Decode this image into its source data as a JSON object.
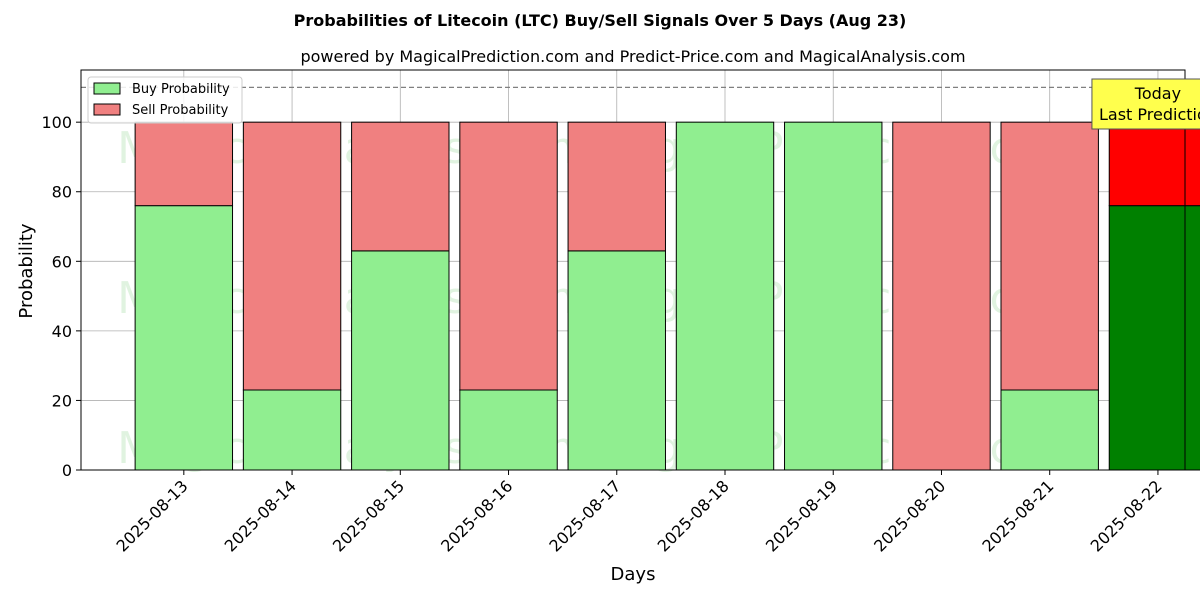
{
  "chart_data": {
    "type": "bar",
    "stacked": true,
    "title": "Probabilities of Litecoin (LTC) Buy/Sell Signals Over 5 Days (Aug 23)",
    "subtitle": "powered by MagicalPrediction.com and Predict-Price.com and MagicalAnalysis.com",
    "xlabel": "Days",
    "ylabel": "Probability",
    "ylim": [
      0,
      115
    ],
    "yticks": [
      0,
      20,
      40,
      60,
      80,
      100
    ],
    "grid": true,
    "legend_position": "top-left",
    "reference_line": 110,
    "categories": [
      "2025-08-13",
      "2025-08-14",
      "2025-08-15",
      "2025-08-16",
      "2025-08-17",
      "2025-08-18",
      "2025-08-19",
      "2025-08-20",
      "2025-08-21",
      "2025-08-22"
    ],
    "series": [
      {
        "name": "Buy Probability",
        "values": [
          76,
          23,
          63,
          23,
          63,
          100,
          100,
          0,
          23,
          76
        ],
        "color": "#90ee90",
        "highlight_color": "#008000"
      },
      {
        "name": "Sell Probability",
        "values": [
          24,
          77,
          37,
          77,
          37,
          0,
          0,
          100,
          77,
          24
        ],
        "color": "#f08080",
        "highlight_color": "#ff0000"
      }
    ],
    "highlight_index": 9,
    "annotation": {
      "line1": "Today",
      "line2": "Last Prediction",
      "background": "#ffff4d"
    },
    "watermarks": [
      "MagicalAnalysis.com",
      "MagicalPrediction.com"
    ]
  }
}
